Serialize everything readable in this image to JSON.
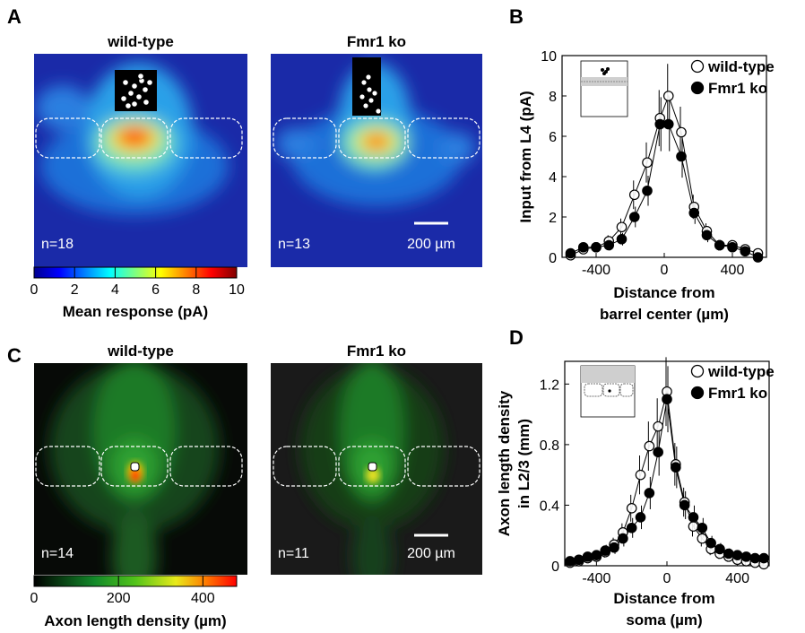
{
  "panels": {
    "A": "A",
    "B": "B",
    "C": "C",
    "D": "D"
  },
  "heatmaps": [
    {
      "id": "A-wt",
      "title": "wild-type",
      "n": "n=18",
      "colormap": "jet"
    },
    {
      "id": "A-ko",
      "title": "Fmr1 ko",
      "n": "n=13",
      "scalebar": "200 µm",
      "colormap": "jet"
    },
    {
      "id": "C-wt",
      "title": "wild-type",
      "n": "n=14",
      "colormap": "green"
    },
    {
      "id": "C-ko",
      "title": "Fmr1 ko",
      "n": "n=11",
      "scalebar": "200 µm",
      "colormap": "green"
    }
  ],
  "colorbars": [
    {
      "id": "A",
      "ticks": [
        "0",
        "2",
        "4",
        "6",
        "8",
        "10"
      ],
      "label": "Mean response (pA)",
      "range": [
        0,
        10
      ]
    },
    {
      "id": "C",
      "ticks": [
        "0",
        "200",
        "400"
      ],
      "label": "Axon length density (µm)",
      "range": [
        0,
        480
      ]
    }
  ],
  "chart_data": [
    {
      "type": "line",
      "panel": "B",
      "ylabel": "Input from L4 (pA)",
      "xlabel_lines": [
        "Distance from",
        "barrel center (µm)"
      ],
      "xlim": [
        -600,
        600
      ],
      "ylim": [
        0,
        10
      ],
      "xticks": [
        -400,
        0,
        400
      ],
      "xtick_labels": [
        "-400",
        "0",
        "400"
      ],
      "yticks": [
        0,
        2,
        4,
        6,
        8,
        10
      ],
      "ytick_labels": [
        "0",
        "2",
        "4",
        "6",
        "8",
        "10"
      ],
      "legend": "top-right",
      "x": [
        -550,
        -475,
        -400,
        -325,
        -250,
        -175,
        -100,
        -25,
        25,
        100,
        175,
        250,
        325,
        400,
        475,
        550
      ],
      "series": [
        {
          "name": "wild-type",
          "marker": "open-circle",
          "values": [
            0.1,
            0.4,
            0.5,
            0.8,
            1.5,
            3.1,
            4.7,
            6.9,
            8.0,
            6.2,
            2.5,
            1.3,
            0.6,
            0.6,
            0.4,
            0.2
          ]
        },
        {
          "name": "Fmr1 ko",
          "marker": "filled-circle",
          "values": [
            0.2,
            0.5,
            0.5,
            0.6,
            0.9,
            2.0,
            3.3,
            6.6,
            6.6,
            5.0,
            2.2,
            1.1,
            0.6,
            0.5,
            0.3,
            0.0
          ]
        }
      ]
    },
    {
      "type": "line",
      "panel": "D",
      "ylabel_lines": [
        "Axon length density",
        "in L2/3 (mm)"
      ],
      "xlabel_lines": [
        "Distance from",
        "soma (µm)"
      ],
      "xlim": [
        -580,
        580
      ],
      "ylim": [
        0,
        1.35
      ],
      "xticks": [
        -400,
        0,
        400
      ],
      "xtick_labels": [
        "-400",
        "0",
        "400"
      ],
      "yticks": [
        0,
        0.4,
        0.8,
        1.2
      ],
      "ytick_labels": [
        "0",
        "0.4",
        "0.8",
        "1.2"
      ],
      "legend": "top-right",
      "x": [
        -550,
        -500,
        -450,
        -400,
        -350,
        -300,
        -250,
        -200,
        -150,
        -100,
        -50,
        0,
        50,
        100,
        150,
        200,
        250,
        300,
        350,
        400,
        450,
        500,
        550
      ],
      "series": [
        {
          "name": "wild-type",
          "marker": "open-circle",
          "values": [
            0.02,
            0.03,
            0.05,
            0.06,
            0.09,
            0.14,
            0.22,
            0.38,
            0.6,
            0.79,
            0.92,
            1.15,
            0.67,
            0.42,
            0.26,
            0.18,
            0.11,
            0.08,
            0.06,
            0.04,
            0.03,
            0.02,
            0.01
          ]
        },
        {
          "name": "Fmr1 ko",
          "marker": "filled-circle",
          "values": [
            0.03,
            0.04,
            0.06,
            0.07,
            0.1,
            0.12,
            0.18,
            0.25,
            0.32,
            0.48,
            0.75,
            1.1,
            0.65,
            0.4,
            0.32,
            0.25,
            0.15,
            0.11,
            0.08,
            0.07,
            0.06,
            0.05,
            0.05
          ]
        }
      ]
    }
  ]
}
